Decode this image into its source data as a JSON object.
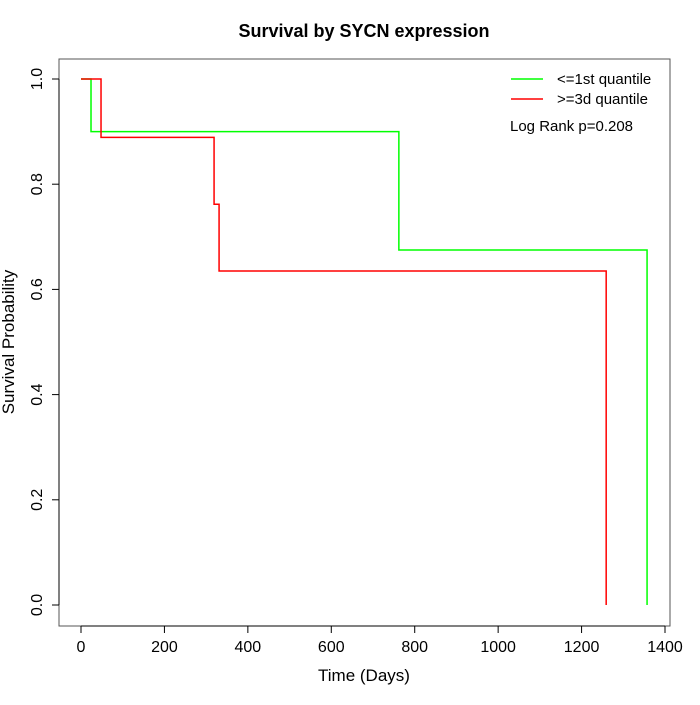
{
  "chart_data": {
    "type": "line",
    "subtype": "kaplan-meier step",
    "title": "Survival by SYCN expression",
    "xlabel": "Time (Days)",
    "ylabel": "Survival Probability",
    "xlim": [
      0,
      1400
    ],
    "ylim": [
      0,
      1
    ],
    "xticks": [
      0,
      200,
      400,
      600,
      800,
      1000,
      1200,
      1400
    ],
    "yticks": [
      0.0,
      0.2,
      0.4,
      0.6,
      0.8,
      1.0
    ],
    "xtick_labels": [
      "0",
      "200",
      "400",
      "600",
      "800",
      "1000",
      "1200",
      "1400"
    ],
    "ytick_labels": [
      "0.0",
      "0.2",
      "0.4",
      "0.6",
      "0.8",
      "1.0"
    ],
    "grid": false,
    "legend_position": "top-right",
    "series": [
      {
        "name": "<=1st quantile",
        "color": "#00ff00",
        "x": [
          0,
          24,
          762,
          1357
        ],
        "y": [
          1.0,
          0.9,
          0.675,
          0.0
        ]
      },
      {
        "name": ">=3d quantile",
        "color": "#ff0000",
        "x": [
          0,
          48,
          319,
          331,
          1259
        ],
        "y": [
          1.0,
          0.889,
          0.762,
          0.635,
          0.0
        ]
      }
    ],
    "annotation": "Log Rank p=0.208"
  }
}
